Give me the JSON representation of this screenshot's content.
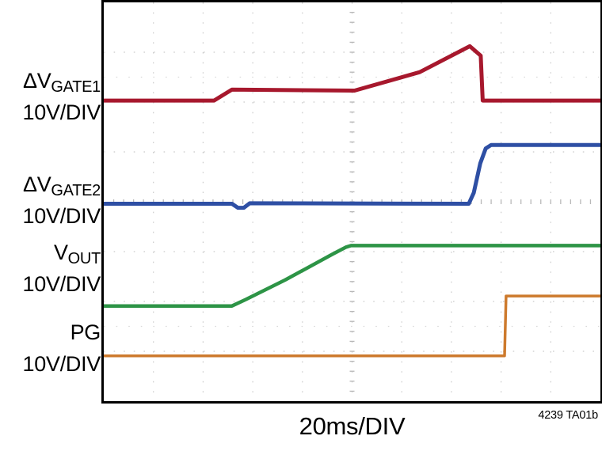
{
  "figure": {
    "xlabel": "20ms/DIV",
    "figure_id": "4239 TA01b",
    "channels": [
      {
        "id": "vgate1",
        "name": "ΔV",
        "sub": "GATE1",
        "scale": "10V/DIV"
      },
      {
        "id": "vgate2",
        "name": "ΔV",
        "sub": "GATE2",
        "scale": "10V/DIV"
      },
      {
        "id": "vout",
        "name": "V",
        "sub": "OUT",
        "scale": "10V/DIV"
      },
      {
        "id": "pg",
        "name": "PG",
        "sub": "",
        "scale": "10V/DIV"
      }
    ]
  },
  "chart_data": {
    "type": "line",
    "title": "",
    "xlabel": "20ms/DIV",
    "x_divisions": 10,
    "y_divisions": 8,
    "x_scale_per_div": "20ms",
    "grid": true,
    "grid_color": "#cbcbcb",
    "minor_row_color": "#d9d9d9",
    "tick_color": "#b8b8b8",
    "border_color": "#000000",
    "series": [
      {
        "id": "vgate1",
        "name": "ΔVGATE1",
        "scale_per_div": "10V",
        "color": "#a7182d",
        "width": 5,
        "points_div": [
          [
            0,
            1.97
          ],
          [
            2.22,
            1.97
          ],
          [
            2.58,
            1.75
          ],
          [
            5.05,
            1.77
          ],
          [
            6.36,
            1.4
          ],
          [
            7.37,
            0.88
          ],
          [
            7.59,
            1.07
          ],
          [
            7.63,
            1.97
          ],
          [
            10,
            1.97
          ]
        ]
      },
      {
        "id": "vgate2",
        "name": "ΔVGATE2",
        "scale_per_div": "10V",
        "color": "#2e4fa4",
        "width": 5,
        "points_div": [
          [
            0,
            4.04
          ],
          [
            2.58,
            4.04
          ],
          [
            2.7,
            4.12
          ],
          [
            2.82,
            4.12
          ],
          [
            2.94,
            4.03
          ],
          [
            7.35,
            4.04
          ],
          [
            7.45,
            3.82
          ],
          [
            7.58,
            3.23
          ],
          [
            7.69,
            2.93
          ],
          [
            7.8,
            2.86
          ],
          [
            10,
            2.86
          ]
        ]
      },
      {
        "id": "vout",
        "name": "VOUT",
        "scale_per_div": "10V",
        "color": "#2d9446",
        "width": 4.5,
        "points_div": [
          [
            0,
            6.09
          ],
          [
            2.58,
            6.09
          ],
          [
            2.86,
            5.96
          ],
          [
            3.65,
            5.57
          ],
          [
            4.61,
            5.05
          ],
          [
            4.88,
            4.91
          ],
          [
            4.98,
            4.88
          ],
          [
            10,
            4.88
          ]
        ]
      },
      {
        "id": "pg",
        "name": "PG",
        "scale_per_div": "10V",
        "color": "#cd7a2d",
        "width": 3.5,
        "points_div": [
          [
            0,
            7.09
          ],
          [
            8.07,
            7.09
          ],
          [
            8.1,
            5.89
          ],
          [
            10,
            5.89
          ]
        ]
      }
    ]
  }
}
